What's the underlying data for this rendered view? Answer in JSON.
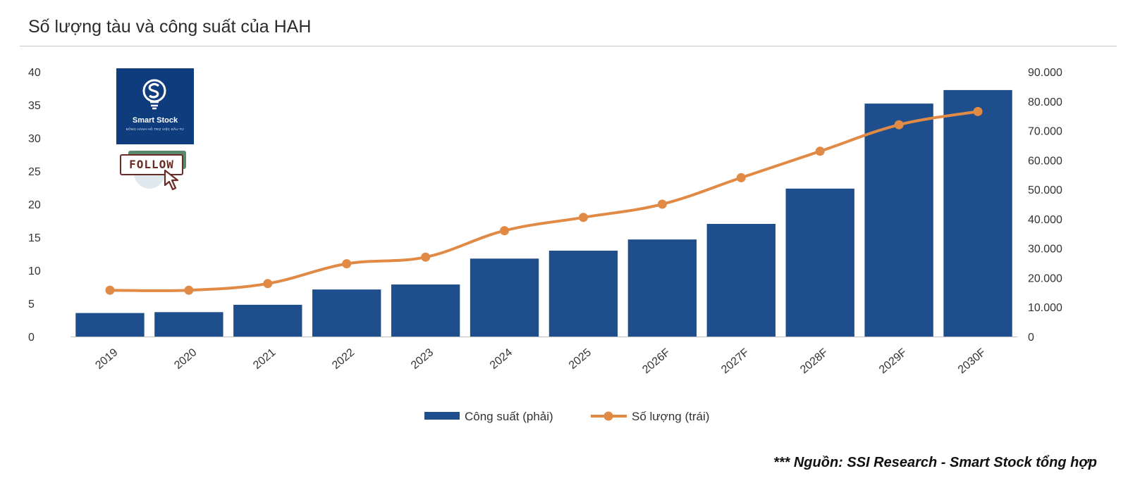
{
  "header": {
    "title": "Số lượng tàu và công suất của HAH"
  },
  "watermark": {
    "name": "Smart Stock",
    "tagline": "ĐỒNG HÀNH HỖ TRỢ VIỆC ĐẦU TƯ",
    "follow_label": "FOLLOW",
    "icon": "lightbulb-s-logo"
  },
  "footer": {
    "source": "*** Nguồn: SSI Research - Smart Stock tổng hợp"
  },
  "colors": {
    "bar": "#1f4e8c",
    "line": "#e08a45",
    "text": "#333333",
    "axis": "#bfbfbf"
  },
  "chart_data": {
    "type": "bar",
    "categories": [
      "2019",
      "2020",
      "2021",
      "2022",
      "2023",
      "2024",
      "2025",
      "2026F",
      "2027F",
      "2028F",
      "2029F",
      "2030F"
    ],
    "series": [
      {
        "name": "Công suất (phải)",
        "type": "bar",
        "axis": "right",
        "values": [
          8000,
          8300,
          10800,
          16000,
          17700,
          26500,
          29200,
          33000,
          38300,
          50300,
          79200,
          83800
        ]
      },
      {
        "name": "Số lượng (trái)",
        "type": "line",
        "axis": "left",
        "values": [
          7,
          7,
          8,
          11,
          12,
          16,
          18,
          20,
          24,
          28,
          32,
          34
        ]
      }
    ],
    "y_left": {
      "min": 0,
      "max": 40,
      "ticks": [
        "0",
        "5",
        "10",
        "15",
        "20",
        "25",
        "30",
        "35",
        "40"
      ]
    },
    "y_right": {
      "min": 0,
      "max": 90000,
      "ticks": [
        "0",
        "10.000",
        "20.000",
        "30.000",
        "40.000",
        "50.000",
        "60.000",
        "70.000",
        "80.000",
        "90.000"
      ]
    },
    "legend": {
      "placement": "bottom",
      "entries": [
        "Công suất (phải)",
        "Số lượng (trái)"
      ]
    },
    "grid": false
  }
}
